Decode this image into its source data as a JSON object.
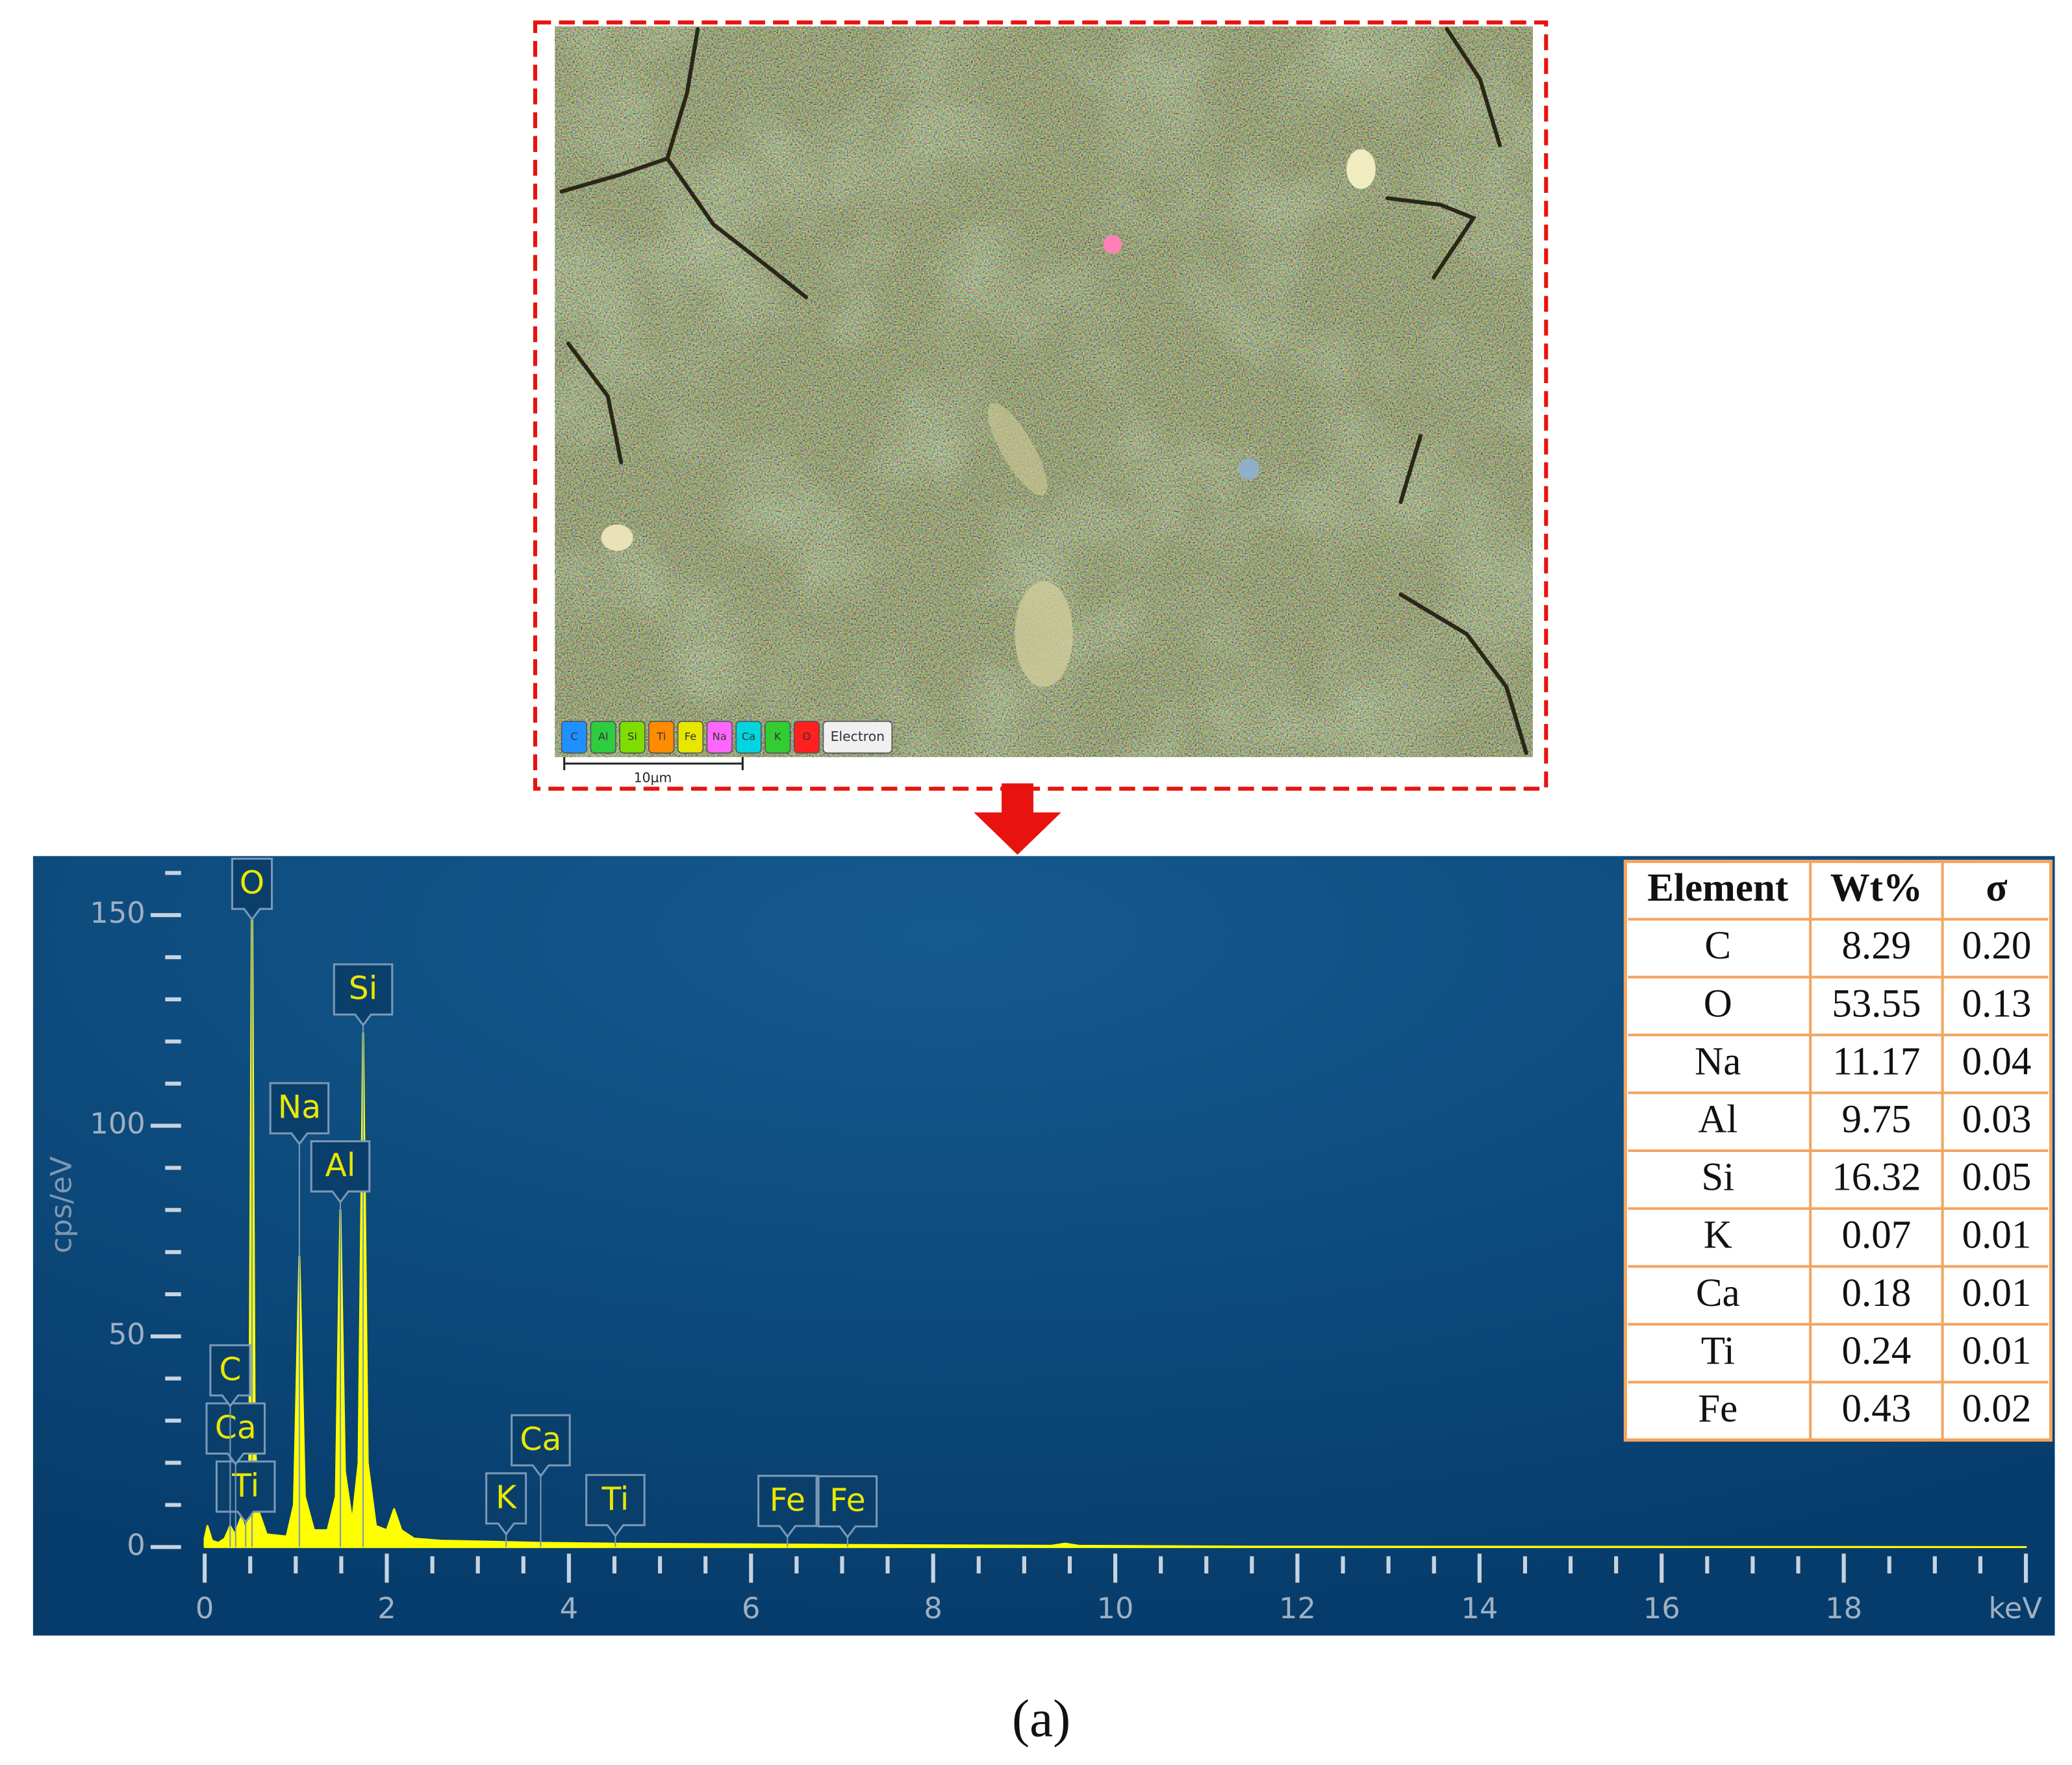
{
  "figure": {
    "caption": "(a)"
  },
  "sem_map": {
    "legend": [
      {
        "label": "C",
        "color": "#1e90ff"
      },
      {
        "label": "Al",
        "color": "#2ecc40"
      },
      {
        "label": "Si",
        "color": "#7fdd00"
      },
      {
        "label": "Ti",
        "color": "#ff8c00"
      },
      {
        "label": "Fe",
        "color": "#e6e600"
      },
      {
        "label": "Na",
        "color": "#ff66ff"
      },
      {
        "label": "Ca",
        "color": "#00d5e0"
      },
      {
        "label": "K",
        "color": "#32cd32"
      },
      {
        "label": "O",
        "color": "#ff2020"
      },
      {
        "label": "Electron",
        "color": "#f0f0f0"
      }
    ],
    "scale_bar": "10µm"
  },
  "chart_data": {
    "type": "area",
    "color": "#ffff00",
    "y_label": "cps/eV",
    "xlim": [
      -0.1,
      20.1
    ],
    "xticks": [
      0,
      2,
      4,
      6,
      8,
      10,
      12,
      14,
      16,
      18,
      {
        "value": 20,
        "label": "keV"
      }
    ],
    "xticks_minor": [
      0.5,
      1,
      1.5,
      2.5,
      3,
      3.5,
      4.5,
      5,
      5.5,
      6.5,
      7,
      7.5,
      8.5,
      9,
      9.5,
      10.5,
      11,
      11.5,
      12.5,
      13,
      13.5,
      14.5,
      15,
      15.5,
      16.5,
      17,
      17.5,
      18.5,
      19,
      19.5
    ],
    "ylim": [
      -21,
      164
    ],
    "yticks": [
      0,
      50,
      100,
      150
    ],
    "yticks_minor": [
      10,
      20,
      30,
      40,
      60,
      70,
      80,
      90,
      110,
      120,
      130,
      140,
      160
    ],
    "x": [
      0,
      0.03,
      0.08,
      0.15,
      0.22,
      0.28,
      0.33,
      0.4,
      0.45,
      0.49,
      0.52,
      0.55,
      0.6,
      0.68,
      0.9,
      0.98,
      1.04,
      1.1,
      1.2,
      1.35,
      1.44,
      1.49,
      1.54,
      1.62,
      1.69,
      1.74,
      1.79,
      1.88,
      2.0,
      2.08,
      2.16,
      2.3,
      2.6,
      3.3,
      3.7,
      4.5,
      6.4,
      7.06,
      9.3,
      9.45,
      9.6,
      11.5,
      20
    ],
    "values": [
      2,
      5,
      1.5,
      1,
      2,
      5,
      3,
      7,
      4,
      20,
      160,
      25,
      8,
      3,
      2.5,
      10,
      69,
      12,
      4,
      4,
      12,
      80,
      18,
      6,
      20,
      122,
      20,
      5,
      4,
      9,
      4,
      2,
      1.5,
      1.2,
      1,
      0.8,
      0.6,
      0.5,
      0.3,
      0.8,
      0.3,
      0.1,
      0
    ],
    "annotations": [
      {
        "label": "O",
        "x": 0.52
      },
      {
        "label": "Si",
        "x": 1.74
      },
      {
        "label": "Al",
        "x": 1.49
      },
      {
        "label": "Na",
        "x": 1.04
      },
      {
        "label": "Ti",
        "x": 0.45
      },
      {
        "label": "Ca",
        "x": 0.34
      },
      {
        "label": "C",
        "x": 0.28
      },
      {
        "label": "K",
        "x": 3.31
      },
      {
        "label": "Ca",
        "x": 3.69
      },
      {
        "label": "Ti",
        "x": 4.51
      },
      {
        "label": "Fe",
        "x": 6.4
      },
      {
        "label": "Fe",
        "x": 7.06
      }
    ]
  },
  "table": {
    "header": [
      "Element",
      "Wt%",
      "σ"
    ],
    "rows": [
      [
        "C",
        "8.29",
        "0.20"
      ],
      [
        "O",
        "53.55",
        "0.13"
      ],
      [
        "Na",
        "11.17",
        "0.04"
      ],
      [
        "Al",
        "9.75",
        "0.03"
      ],
      [
        "Si",
        "16.32",
        "0.05"
      ],
      [
        "K",
        "0.07",
        "0.01"
      ],
      [
        "Ca",
        "0.18",
        "0.01"
      ],
      [
        "Ti",
        "0.24",
        "0.01"
      ],
      [
        "Fe",
        "0.43",
        "0.02"
      ]
    ]
  }
}
